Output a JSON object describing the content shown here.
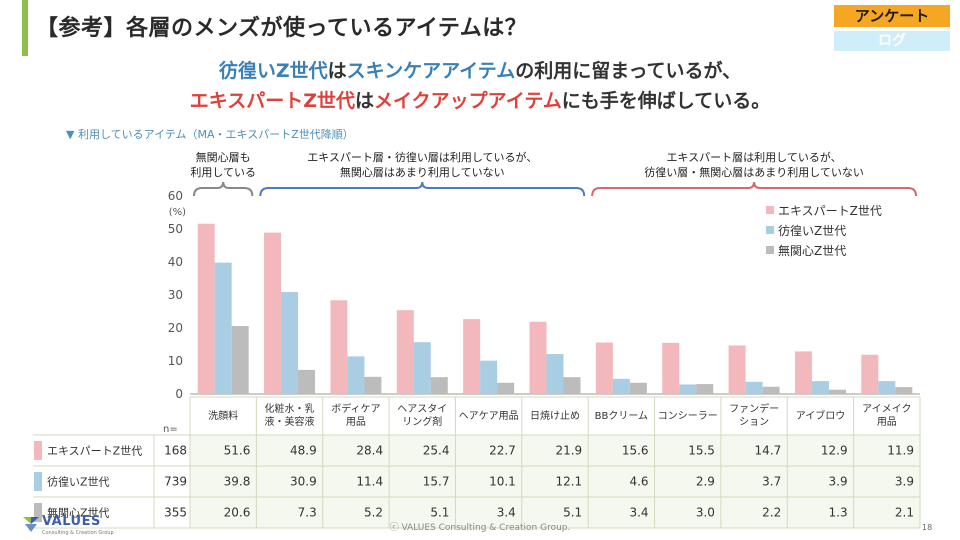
{
  "slide_title": "【参考】各層のメンズが使っているアイテムは？",
  "badges": {
    "survey": "アンケート",
    "log": "ログ"
  },
  "headline": {
    "line1": {
      "a": "彷徨いZ世代",
      "b": "は",
      "c": "スキンケアアイテム",
      "d": "の利用に留まっているが、"
    },
    "line2": {
      "a": "エキスパートZ世代",
      "b": "は",
      "c": "メイクアップアイテム",
      "d": "にも手を伸ばしている。"
    }
  },
  "chart_caption": "▼ 利用しているアイテム（MA・エキスパートZ世代降順）",
  "brackets": [
    {
      "text": "無関心層も\n利用している",
      "color": "#888888"
    },
    {
      "text": "エキスパート層・彷徨い層は利用しているが、\n無関心層はあまり利用していない",
      "color": "#4a7cc4"
    },
    {
      "text": "エキスパート層は利用しているが、\n彷徨い層・無関心層はあまり利用していない",
      "color": "#d9676a"
    }
  ],
  "chart_data": {
    "type": "bar",
    "ylabel": "(%)",
    "ylim": [
      0,
      60
    ],
    "yticks": [
      0,
      10,
      20,
      30,
      40,
      50,
      60
    ],
    "categories": [
      "洗顔料",
      "化粧水・乳\n液・美容液",
      "ボディケア\n用品",
      "ヘアスタイ\nリング剤",
      "ヘアケア用品",
      "日焼け止め",
      "BBクリーム",
      "コンシーラー",
      "ファンデー\nション",
      "アイブロウ",
      "アイメイク\n用品"
    ],
    "series": [
      {
        "name": "エキスパートZ世代",
        "n": 168,
        "color": "#f2b8bb",
        "values": [
          51.6,
          48.9,
          28.4,
          25.4,
          22.7,
          21.9,
          15.6,
          15.5,
          14.7,
          12.9,
          11.9
        ]
      },
      {
        "name": "彷徨いZ世代",
        "n": 739,
        "color": "#a9cde3",
        "values": [
          39.8,
          30.9,
          11.4,
          15.7,
          10.1,
          12.1,
          4.6,
          2.9,
          3.7,
          3.9,
          3.9
        ]
      },
      {
        "name": "無関心Z世代",
        "n": 355,
        "color": "#bcbcbc",
        "values": [
          20.6,
          7.3,
          5.2,
          5.1,
          3.4,
          5.1,
          3.4,
          3.0,
          2.2,
          1.3,
          2.1
        ]
      }
    ],
    "legend_position": "top-right",
    "table_n_header": "n="
  },
  "footer": {
    "copyright": "ⓒ VALUES Consulting & Creation Group.",
    "page_number": "18",
    "logo": "VALUES",
    "logo_sub": "Consulting & Creation Group"
  }
}
